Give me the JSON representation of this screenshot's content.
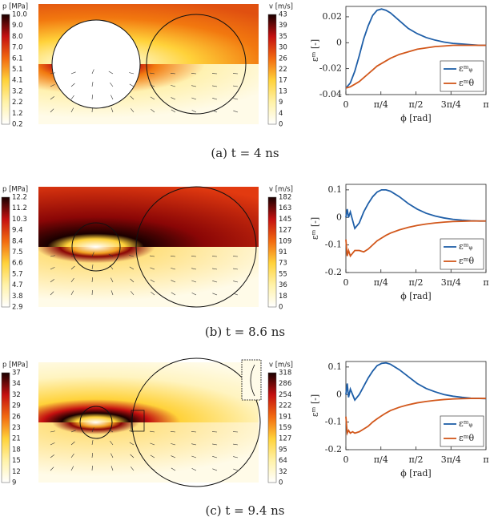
{
  "figure": {
    "panels": [
      {
        "caption": "(a) t = 4 ns",
        "pressure_colorbar": {
          "label": "p [MPa]",
          "ticks": [
            "10.0",
            "9.0",
            "8.0",
            "7.0",
            "6.1",
            "5.1",
            "4.1",
            "3.2",
            "2.2",
            "1.2",
            "0.2"
          ]
        },
        "velocity_colorbar": {
          "label": "v [m/s]",
          "ticks": [
            "43",
            "39",
            "35",
            "30",
            "26",
            "22",
            "17",
            "13",
            "9",
            "4",
            "0"
          ]
        }
      },
      {
        "caption": "(b) t = 8.6 ns",
        "pressure_colorbar": {
          "label": "p [MPa]",
          "ticks": [
            "12.2",
            "11.2",
            "10.3",
            "9.4",
            "8.4",
            "7.5",
            "6.6",
            "5.7",
            "4.7",
            "3.8",
            "2.9"
          ]
        },
        "velocity_colorbar": {
          "label": "v [m/s]",
          "ticks": [
            "182",
            "163",
            "145",
            "127",
            "109",
            "91",
            "73",
            "55",
            "36",
            "18",
            "0"
          ]
        }
      },
      {
        "caption": "(c) t = 9.4 ns",
        "pressure_colorbar": {
          "label": "p [MPa]",
          "ticks": [
            "37",
            "34",
            "32",
            "29",
            "26",
            "23",
            "21",
            "18",
            "15",
            "12",
            "9"
          ]
        },
        "velocity_colorbar": {
          "label": "v [m/s]",
          "ticks": [
            "318",
            "286",
            "254",
            "222",
            "191",
            "159",
            "127",
            "95",
            "64",
            "32",
            "0"
          ]
        }
      }
    ]
  },
  "chart_data": [
    {
      "type": "line",
      "x_label": "ϕ [rad]",
      "y_label": "εᵐ [-]",
      "x": [
        0,
        0.1,
        0.2,
        0.3,
        0.4,
        0.5,
        0.6,
        0.7,
        0.8,
        0.9,
        1.0,
        1.2,
        1.4,
        1.6,
        1.8,
        2.0,
        2.2,
        2.4,
        2.6,
        2.8,
        3.0,
        3.14
      ],
      "series": [
        {
          "name": "εᵐᵩ",
          "color": "#1f5fa8",
          "values": [
            -0.035,
            -0.031,
            -0.022,
            -0.01,
            0.003,
            0.013,
            0.021,
            0.025,
            0.026,
            0.025,
            0.023,
            0.017,
            0.011,
            0.007,
            0.004,
            0.002,
            0.0005,
            -0.0005,
            -0.001,
            -0.0015,
            -0.002,
            -0.002
          ]
        },
        {
          "name": "εᵐθ",
          "color": "#d2581c",
          "values": [
            -0.035,
            -0.034,
            -0.032,
            -0.03,
            -0.027,
            -0.024,
            -0.021,
            -0.018,
            -0.016,
            -0.014,
            -0.012,
            -0.009,
            -0.007,
            -0.005,
            -0.004,
            -0.003,
            -0.0025,
            -0.002,
            -0.002,
            -0.002,
            -0.002,
            -0.002
          ]
        }
      ],
      "xlim": [
        0,
        3.1416
      ],
      "xticks": [
        0,
        {
          "value": 0.7854,
          "label": "π/4"
        },
        {
          "value": 1.5708,
          "label": "π/2"
        },
        {
          "value": 2.3562,
          "label": "3π/4"
        },
        {
          "value": 3.1416,
          "label": "π"
        }
      ],
      "ylim": [
        -0.04,
        0.028
      ],
      "yticks": [
        0.02,
        0,
        -0.02,
        -0.04
      ],
      "grid": false,
      "legend": "lower right"
    },
    {
      "type": "line",
      "x_label": "ϕ [rad]",
      "y_label": "εᵐ [-]",
      "x": [
        0,
        0.03,
        0.06,
        0.1,
        0.15,
        0.2,
        0.3,
        0.4,
        0.5,
        0.6,
        0.7,
        0.8,
        0.9,
        1.0,
        1.2,
        1.4,
        1.6,
        1.8,
        2.0,
        2.2,
        2.4,
        2.6,
        2.8,
        3.0,
        3.14
      ],
      "series": [
        {
          "name": "εᵐᵩ",
          "color": "#1f5fa8",
          "values": [
            0,
            0.03,
            0.0,
            0.02,
            -0.01,
            -0.04,
            -0.02,
            0.02,
            0.05,
            0.075,
            0.092,
            0.1,
            0.1,
            0.095,
            0.075,
            0.05,
            0.03,
            0.015,
            0.005,
            -0.002,
            -0.007,
            -0.01,
            -0.012,
            -0.013,
            -0.013
          ]
        },
        {
          "name": "εᵐθ",
          "color": "#d2581c",
          "values": [
            -0.08,
            -0.14,
            -0.12,
            -0.14,
            -0.13,
            -0.12,
            -0.12,
            -0.125,
            -0.115,
            -0.1,
            -0.085,
            -0.075,
            -0.065,
            -0.057,
            -0.045,
            -0.036,
            -0.029,
            -0.024,
            -0.02,
            -0.017,
            -0.015,
            -0.014,
            -0.013,
            -0.013,
            -0.013
          ]
        }
      ],
      "xlim": [
        0,
        3.1416
      ],
      "xticks": [
        0,
        {
          "value": 0.7854,
          "label": "π/4"
        },
        {
          "value": 1.5708,
          "label": "π/2"
        },
        {
          "value": 2.3562,
          "label": "3π/4"
        },
        {
          "value": 3.1416,
          "label": "π"
        }
      ],
      "ylim": [
        -0.2,
        0.12
      ],
      "yticks": [
        0.1,
        0,
        -0.1,
        -0.2
      ],
      "grid": false,
      "legend": "lower right"
    },
    {
      "type": "line",
      "x_label": "ϕ [rad]",
      "y_label": "εᵐ [-]",
      "x": [
        0,
        0.03,
        0.06,
        0.1,
        0.15,
        0.2,
        0.3,
        0.4,
        0.5,
        0.6,
        0.7,
        0.8,
        0.9,
        1.0,
        1.2,
        1.4,
        1.6,
        1.8,
        2.0,
        2.2,
        2.4,
        2.6,
        2.8,
        3.0,
        3.14
      ],
      "series": [
        {
          "name": "εᵐᵩ",
          "color": "#1f5fa8",
          "values": [
            0,
            0.04,
            -0.01,
            0.02,
            0.0,
            -0.02,
            0.0,
            0.03,
            0.06,
            0.085,
            0.105,
            0.113,
            0.115,
            0.11,
            0.09,
            0.065,
            0.04,
            0.022,
            0.01,
            0.0,
            -0.006,
            -0.01,
            -0.013,
            -0.014,
            -0.015
          ]
        },
        {
          "name": "εᵐθ",
          "color": "#d2581c",
          "values": [
            -0.08,
            -0.14,
            -0.13,
            -0.14,
            -0.135,
            -0.14,
            -0.135,
            -0.125,
            -0.115,
            -0.1,
            -0.088,
            -0.077,
            -0.067,
            -0.058,
            -0.046,
            -0.037,
            -0.03,
            -0.025,
            -0.021,
            -0.018,
            -0.016,
            -0.015,
            -0.014,
            -0.014,
            -0.014
          ]
        }
      ],
      "xlim": [
        0,
        3.1416
      ],
      "xticks": [
        0,
        {
          "value": 0.7854,
          "label": "π/4"
        },
        {
          "value": 1.5708,
          "label": "π/2"
        },
        {
          "value": 2.3562,
          "label": "3π/4"
        },
        {
          "value": 3.1416,
          "label": "π"
        }
      ],
      "ylim": [
        -0.2,
        0.12
      ],
      "yticks": [
        0.1,
        0,
        -0.1,
        -0.2
      ],
      "grid": false,
      "legend": "lower right"
    }
  ]
}
